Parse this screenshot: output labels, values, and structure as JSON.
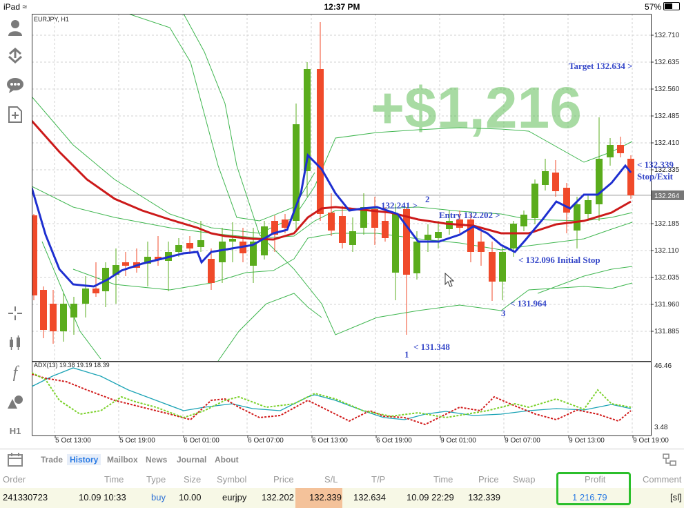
{
  "status": {
    "device": "iPad",
    "time": "12:37 PM",
    "battery": "57%",
    "battery_level": 0.57
  },
  "chart": {
    "symbol_label": "EURJPY, H1",
    "price_ticks": [
      "132.710",
      "132.635",
      "132.560",
      "132.485",
      "132.410",
      "132.335",
      "132.185",
      "132.110",
      "132.035",
      "131.960",
      "131.885"
    ],
    "current_price": "132.264",
    "time_ticks": [
      "5 Oct 13:00",
      "5 Oct 19:00",
      "6 Oct 01:00",
      "6 Oct 07:00",
      "6 Oct 13:00",
      "6 Oct 19:00",
      "9 Oct 01:00",
      "9 Oct 07:00",
      "9 Oct 13:00",
      "9 Oct 19:00"
    ],
    "profit_overlay": "+$1,216",
    "annotations": {
      "target": "Target 132.634 >",
      "stop_exit_price": "< 132.339",
      "stop_exit": "Stop/Exit",
      "level_2": "132.241 >",
      "num_2": "2",
      "entry": "Entry 132.202 >",
      "initial_stop": "< 132.096 Initial Stop",
      "low_3": "< 131.964",
      "num_3": "3",
      "low_1": "< 131.348",
      "num_1": "1"
    },
    "adx_label": "ADX(13) 19.38 19.19 18.39",
    "adx_ticks": [
      "46.46",
      "3.48"
    ],
    "colors": {
      "bull": "#5aac1c",
      "bear": "#f04a2a",
      "ma_fast": "#1e2fd0",
      "ma_slow": "#cc1a1a",
      "band": "#3fb64f",
      "annot": "#3446c8",
      "profit": "#54b84a"
    }
  },
  "icons": [
    "person-icon",
    "download-icon",
    "chat-icon",
    "new-order-icon",
    "crosshair-icon",
    "indicators-icon",
    "function-icon",
    "objects-icon"
  ],
  "timeframe": "H1",
  "tabs": [
    "Trade",
    "History",
    "Mailbox",
    "News",
    "Journal",
    "About"
  ],
  "active_tab": "History",
  "table": {
    "headers": [
      "Order",
      "Time",
      "Type",
      "Size",
      "Symbol",
      "Price",
      "S/L",
      "T/P",
      "Time",
      "Price",
      "Swap",
      "Profit",
      "Comment"
    ],
    "row": [
      "241330723",
      "10.09 10:33",
      "buy",
      "10.00",
      "eurjpy",
      "132.202",
      "132.339",
      "132.634",
      "10.09 22:29",
      "132.339",
      "",
      "1 216.79",
      "[sl]"
    ]
  }
}
